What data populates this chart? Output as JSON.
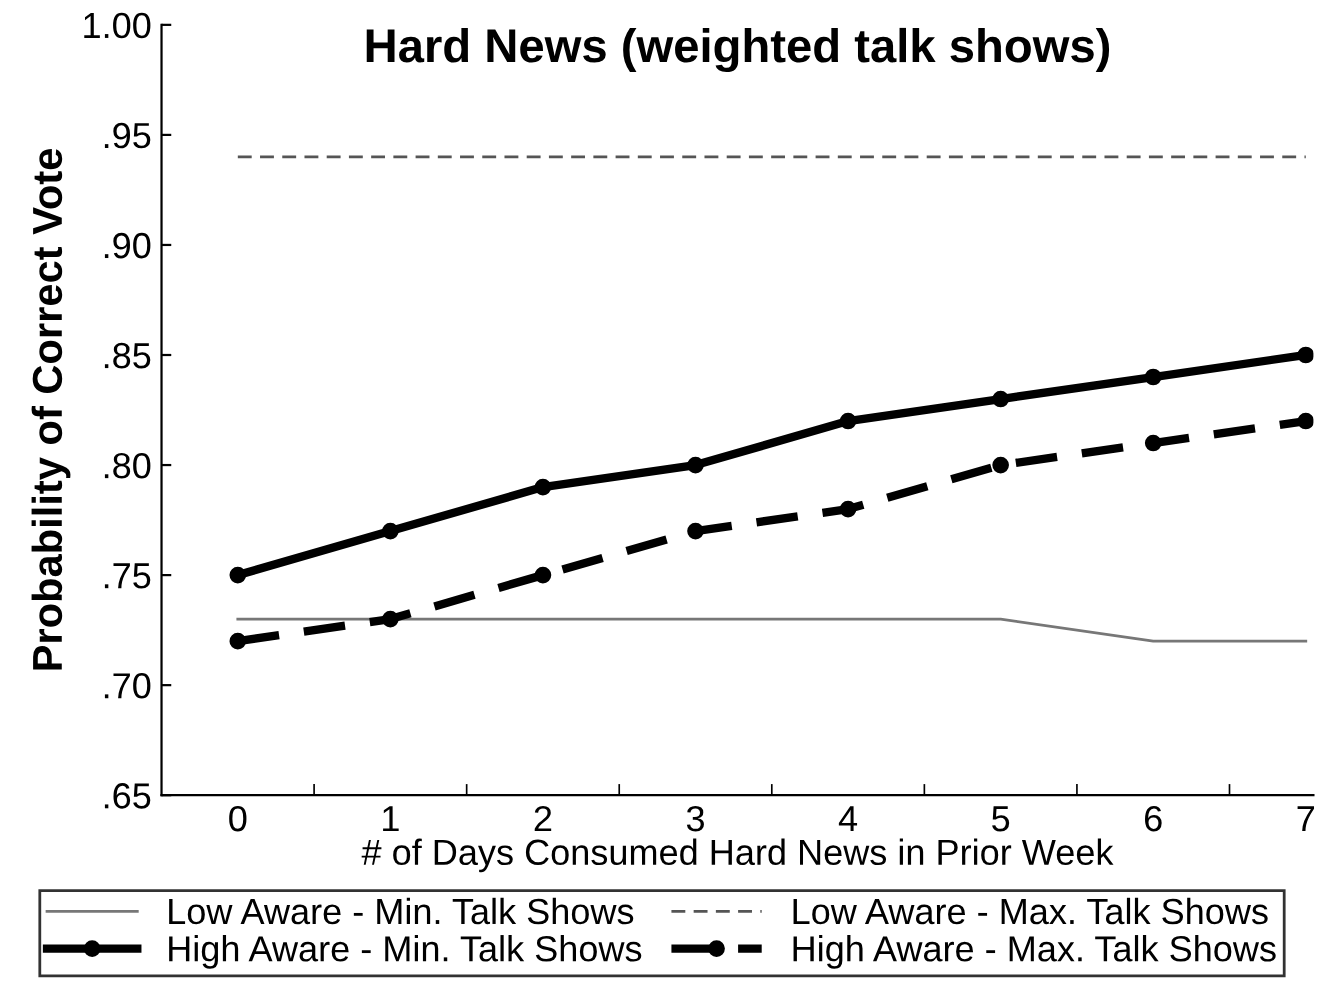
{
  "chart_data": {
    "type": "line",
    "title": "Hard News (weighted talk shows)",
    "xlabel": "# of Days Consumed Hard News in Prior Week",
    "ylabel": "Probability of Correct Vote",
    "categories": [
      "0",
      "1",
      "2",
      "3",
      "4",
      "5",
      "6",
      "7"
    ],
    "series": [
      {
        "name": "Low Aware - Min. Talk Shows",
        "color": "#777777",
        "line_style": "solid",
        "marker": "none",
        "values": [
          0.73,
          0.73,
          0.73,
          0.73,
          0.73,
          0.73,
          0.72,
          0.72
        ]
      },
      {
        "name": "Low Aware - Max. Talk Shows",
        "color": "#555555",
        "line_style": "dashed",
        "marker": "none",
        "values": [
          0.94,
          0.94,
          0.94,
          0.94,
          0.94,
          0.94,
          0.94,
          0.94
        ]
      },
      {
        "name": "High Aware - Min. Talk Shows",
        "color": "#000000",
        "line_style": "solid",
        "marker": "circle",
        "values": [
          0.75,
          0.77,
          0.79,
          0.8,
          0.82,
          0.83,
          0.84,
          0.85
        ]
      },
      {
        "name": "High Aware - Max. Talk Shows",
        "color": "#000000",
        "line_style": "dashed",
        "marker": "circle",
        "values": [
          0.72,
          0.73,
          0.75,
          0.77,
          0.78,
          0.8,
          0.81,
          0.82
        ]
      }
    ],
    "ylim": [
      0.65,
      1.0
    ],
    "yticks": [
      {
        "value": 0.65,
        "label": ".65"
      },
      {
        "value": 0.7,
        "label": ".70"
      },
      {
        "value": 0.75,
        "label": ".75"
      },
      {
        "value": 0.8,
        "label": ".80"
      },
      {
        "value": 0.85,
        "label": ".85"
      },
      {
        "value": 0.9,
        "label": ".90"
      },
      {
        "value": 0.95,
        "label": ".95"
      },
      {
        "value": 1.0,
        "label": "1.00"
      }
    ],
    "grid": false,
    "legend": "bottom"
  }
}
